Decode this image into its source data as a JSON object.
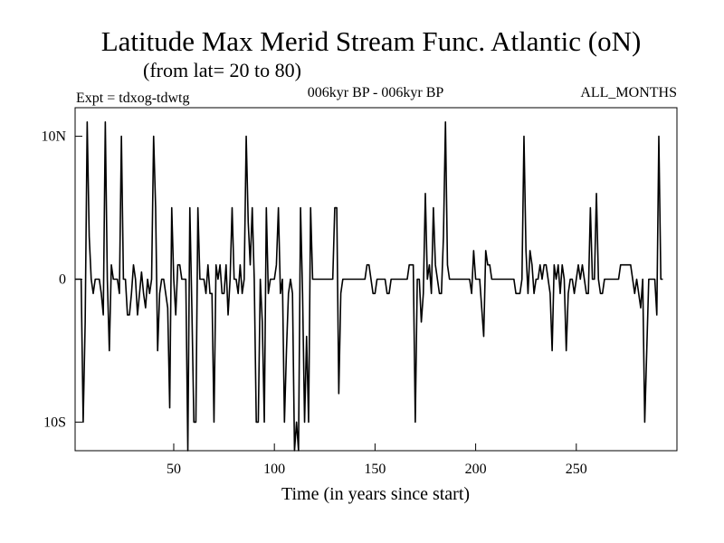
{
  "chart_data": {
    "type": "line",
    "title": "Latitude Max Merid Stream Func. Atlantic (oN)",
    "subtitle": "(from lat= 20 to 80)",
    "header_left": "Expt = tdxog-tdwtg",
    "header_center": "006kyr BP - 006kyr BP",
    "header_right": "ALL_MONTHS",
    "xlabel": "Time (in years since start)",
    "ylabel": "",
    "xlim": [
      1,
      300
    ],
    "ylim": [
      -12,
      12
    ],
    "x_ticks": [
      50,
      100,
      150,
      200,
      250
    ],
    "x_tick_labels": [
      "50",
      "100",
      "150",
      "200",
      "250"
    ],
    "y_ticks": [
      10,
      0,
      -10
    ],
    "y_tick_labels": [
      "10N",
      "0",
      "10S"
    ],
    "grid": false,
    "legend": "none",
    "line_color": "#000000",
    "series": [
      {
        "x_start": 1,
        "x_step": 1,
        "values": [
          0,
          0,
          0,
          0,
          -10,
          -3,
          11,
          3,
          0,
          -1,
          0,
          0,
          0,
          -1,
          -2.5,
          11,
          0,
          -5,
          1,
          0,
          0,
          0,
          -1,
          10,
          0,
          0,
          -2.5,
          -2.5,
          -1,
          1,
          0,
          -2.5,
          -1,
          0.5,
          -1,
          -2,
          0,
          -1,
          0,
          10,
          5,
          -5,
          -1,
          0,
          0,
          -1,
          -2,
          -9,
          5,
          0,
          -2.5,
          1,
          1,
          0,
          0,
          0,
          -12,
          5,
          -2,
          -10,
          -10,
          5,
          0,
          0,
          0,
          -1,
          1,
          -1,
          -1,
          -10,
          1,
          0,
          1,
          -1,
          -1,
          1,
          -2.5,
          0,
          5,
          0,
          0,
          -1,
          1,
          -1,
          0,
          10,
          4,
          1,
          5,
          0,
          -10,
          -10,
          0,
          -3,
          -10,
          5,
          -1,
          0,
          0,
          0,
          1,
          5,
          -1,
          0,
          -10,
          -5,
          -1,
          0,
          -1,
          -12,
          -10,
          -12,
          5,
          -1,
          -10,
          -4,
          -10,
          5,
          0,
          0,
          0,
          0,
          0,
          0,
          0,
          0,
          0,
          0,
          0,
          5,
          5,
          -8,
          -1,
          0,
          0,
          0,
          0,
          0,
          0,
          0,
          0,
          0,
          0,
          0,
          0,
          1,
          1,
          0,
          -1,
          -1,
          0,
          0,
          0,
          0,
          0,
          -1,
          -1,
          0,
          0,
          0,
          0,
          0,
          0,
          0,
          0,
          0,
          1,
          1,
          1,
          -10,
          0,
          0,
          -3,
          -1,
          6,
          0,
          1,
          -1,
          5,
          1,
          0,
          -1,
          -1,
          3,
          11,
          1,
          0,
          0,
          0,
          0,
          0,
          0,
          0,
          0,
          0,
          0,
          0,
          -1,
          2,
          0,
          0,
          0,
          -2,
          -4,
          2,
          1,
          1,
          0,
          0,
          0,
          0,
          0,
          0,
          0,
          0,
          0,
          0,
          0,
          0,
          -1,
          -1,
          -1,
          0,
          10,
          2,
          -1,
          2,
          1,
          -1,
          0,
          0,
          1,
          0,
          1,
          1,
          0,
          -1,
          -5,
          1,
          0,
          1,
          -1,
          1,
          0,
          -5,
          -1,
          0,
          0,
          -1,
          0,
          1,
          0,
          1,
          0,
          -1,
          -1,
          5,
          0,
          0,
          6,
          0,
          -1,
          -1,
          0,
          0,
          0,
          0,
          0,
          0,
          0,
          0,
          1,
          1,
          1,
          1,
          1,
          1,
          0,
          -1,
          0,
          -1,
          -2,
          0,
          -10,
          -5,
          0,
          0,
          0,
          0,
          -2.5,
          10,
          0,
          0
        ]
      }
    ]
  }
}
